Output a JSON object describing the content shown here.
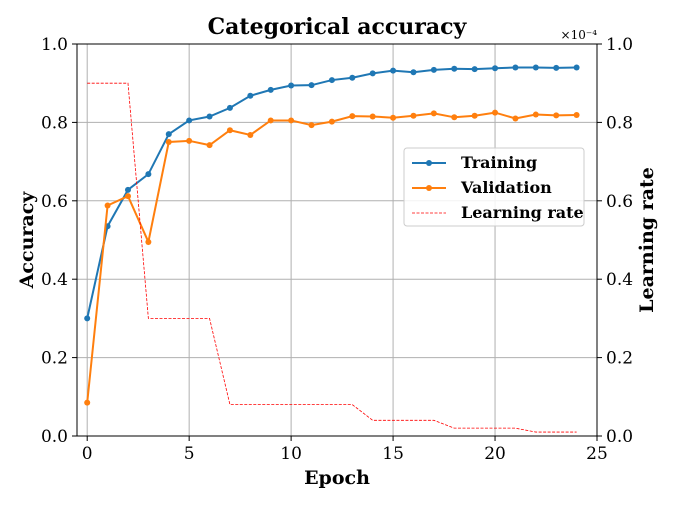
{
  "chart_data": {
    "type": "line",
    "title": "Categorical accuracy",
    "xlabel": "Epoch",
    "ylabel": "Accuracy",
    "y2label": "Learning rate",
    "y2_multiplier": "×10⁻⁴",
    "xlim": [
      -0.5,
      25
    ],
    "ylim": [
      0,
      1.0
    ],
    "y2lim": [
      0,
      1.0
    ],
    "grid": true,
    "legend_position": "center-right",
    "xticks": [
      "0",
      "5",
      "10",
      "15",
      "20",
      "25"
    ],
    "yticks": [
      "0.0",
      "0.2",
      "0.4",
      "0.6",
      "0.8",
      "1.0"
    ],
    "y2ticks": [
      "0.0",
      "0.2",
      "0.4",
      "0.6",
      "0.8",
      "1.0"
    ],
    "x": [
      0,
      1,
      2,
      3,
      4,
      5,
      6,
      7,
      8,
      9,
      10,
      11,
      12,
      13,
      14,
      15,
      16,
      17,
      18,
      19,
      20,
      21,
      22,
      23,
      24
    ],
    "series": [
      {
        "name": "Training",
        "axis": "left",
        "color": "#1f77b4",
        "style": "solid-markers",
        "values": [
          0.3,
          0.535,
          0.628,
          0.668,
          0.77,
          0.805,
          0.815,
          0.837,
          0.868,
          0.883,
          0.894,
          0.895,
          0.908,
          0.914,
          0.925,
          0.932,
          0.928,
          0.934,
          0.937,
          0.936,
          0.938,
          0.94,
          0.94,
          0.939,
          0.94
        ]
      },
      {
        "name": "Validation",
        "axis": "left",
        "color": "#ff7f0e",
        "style": "solid-markers",
        "values": [
          0.085,
          0.588,
          0.612,
          0.495,
          0.75,
          0.753,
          0.742,
          0.78,
          0.768,
          0.805,
          0.805,
          0.793,
          0.802,
          0.816,
          0.815,
          0.812,
          0.817,
          0.823,
          0.813,
          0.817,
          0.825,
          0.81,
          0.82,
          0.818,
          0.819
        ]
      },
      {
        "name": "Learning rate",
        "axis": "right",
        "color": "#ff0000",
        "style": "dashed",
        "values": [
          0.9,
          0.9,
          0.9,
          0.3,
          0.3,
          0.3,
          0.3,
          0.08,
          0.08,
          0.08,
          0.08,
          0.08,
          0.08,
          0.08,
          0.04,
          0.04,
          0.04,
          0.04,
          0.02,
          0.02,
          0.02,
          0.02,
          0.01,
          0.01,
          0.01
        ]
      }
    ]
  }
}
